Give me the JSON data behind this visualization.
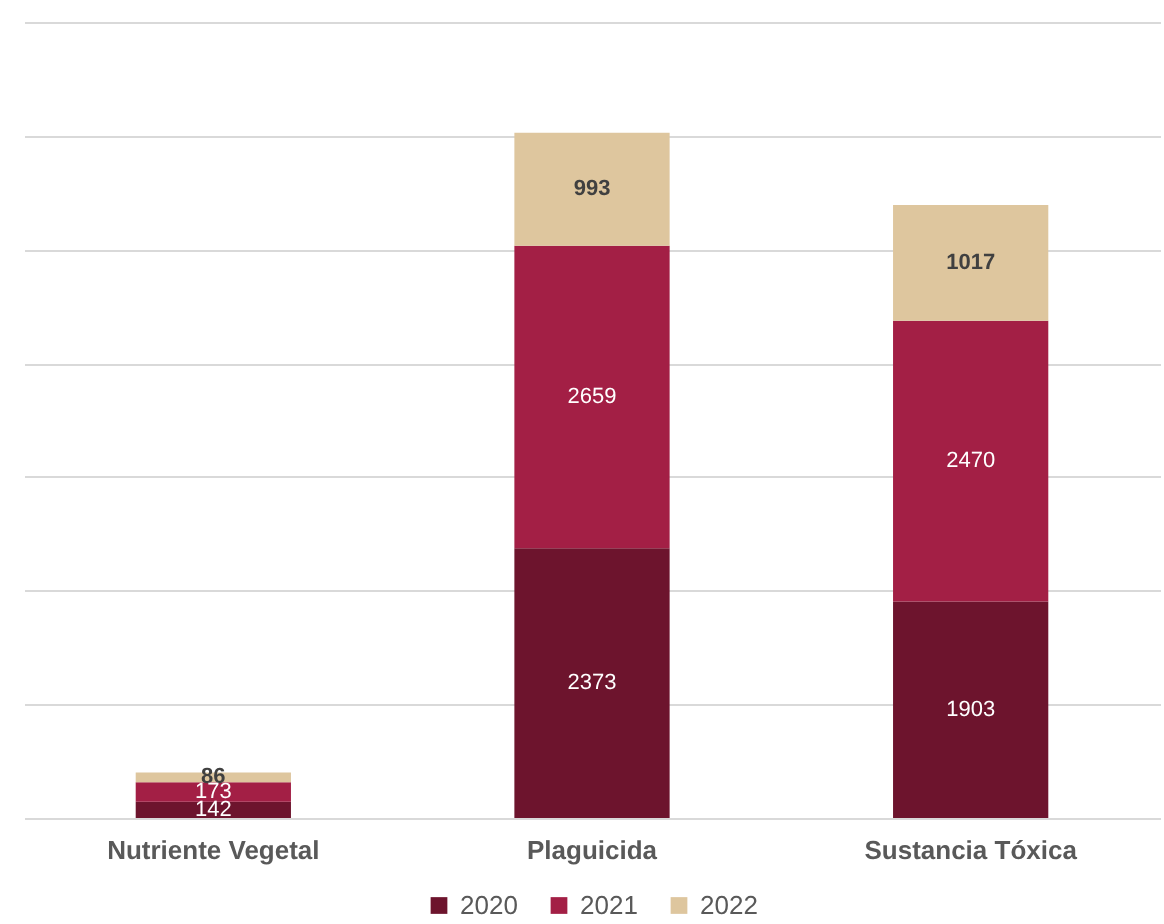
{
  "chart_data": {
    "type": "bar",
    "categories": [
      "Nutriente Vegetal",
      "Plaguicida",
      "Sustancia Tóxica"
    ],
    "series": [
      {
        "name": "2020",
        "color": "#6d142d",
        "values": [
          142,
          2373,
          1903
        ]
      },
      {
        "name": "2021",
        "color": "#a31f45",
        "values": [
          173,
          2659,
          2470
        ]
      },
      {
        "name": "2022",
        "color": "#dec69e",
        "values": [
          86,
          993,
          1017
        ]
      }
    ],
    "stacked": true,
    "ylim": [
      0,
      7000
    ],
    "yticks": [
      0,
      1000,
      2000,
      3000,
      4000,
      5000,
      6000,
      7000
    ],
    "tick_labels": "x",
    "grid": "y",
    "legend": "bottom",
    "data_labels": true
  }
}
